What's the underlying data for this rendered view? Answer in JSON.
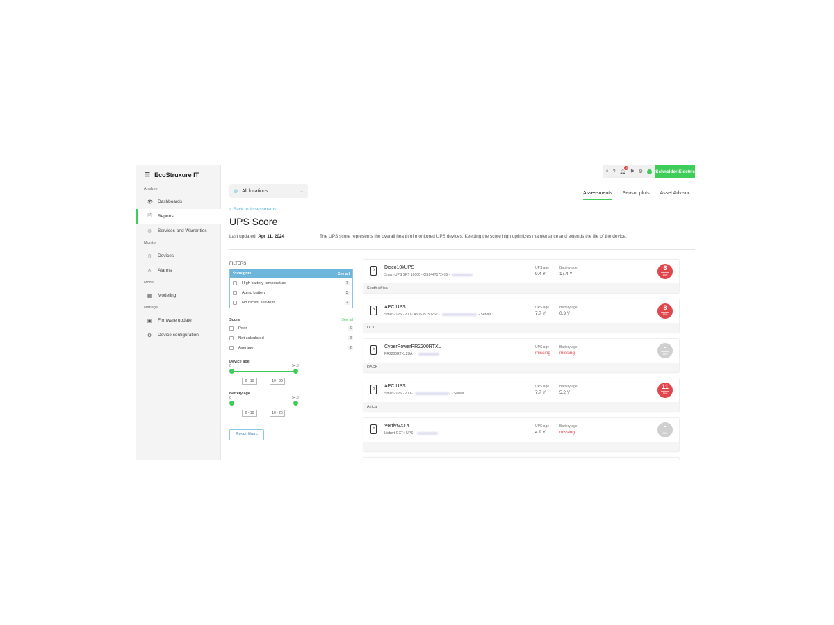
{
  "brand": "EcoStruxure IT",
  "sidebar": {
    "sections": [
      {
        "label": "Analyze",
        "items": [
          {
            "label": "Dashboards",
            "icon": "eye-icon"
          },
          {
            "label": "Reports",
            "icon": "report-icon",
            "active": true
          },
          {
            "label": "Services and Warranties",
            "icon": "services-icon"
          }
        ]
      },
      {
        "label": "Monitor",
        "items": [
          {
            "label": "Devices",
            "icon": "device-icon"
          },
          {
            "label": "Alarms",
            "icon": "alarm-icon"
          }
        ]
      },
      {
        "label": "Model",
        "items": [
          {
            "label": "Modeling",
            "icon": "modeling-icon"
          }
        ]
      },
      {
        "label": "Manage",
        "items": [
          {
            "label": "Firmware update",
            "icon": "firmware-icon"
          },
          {
            "label": "Device configuration",
            "icon": "config-icon"
          }
        ]
      }
    ]
  },
  "header": {
    "notification_count": "3",
    "logo": "Schneider Electric",
    "location": "All locations",
    "tabs": [
      "Assessments",
      "Sensor plots",
      "Asset Advisor"
    ]
  },
  "page": {
    "back": "Back to Assessments",
    "title": "UPS Score",
    "updated_label": "Last updated:",
    "updated": "Apr 11, 2024",
    "description": "The UPS score represents the overall health of monitored UPS devices. Keeping the score high optimizes maintenance and extends the life of the device."
  },
  "filters": {
    "title": "FILTERS",
    "insights": {
      "label": "Insights",
      "see_all": "See all",
      "items": [
        {
          "label": "High battery temperature",
          "count": "7"
        },
        {
          "label": "Aging battery",
          "count": "3"
        },
        {
          "label": "No recent self-test",
          "count": "2"
        }
      ]
    },
    "score": {
      "label": "Score",
      "see_all": "See all",
      "items": [
        {
          "label": "Poor",
          "count": "6"
        },
        {
          "label": "Not calculated",
          "count": "2"
        },
        {
          "label": "Average",
          "count": "2"
        }
      ]
    },
    "device_age": {
      "label": "Device age",
      "min": "0",
      "max": "54.3",
      "chips": [
        "0 - 10",
        "10 - 20"
      ]
    },
    "battery_age": {
      "label": "Battery age",
      "min": "0",
      "max": "54.3",
      "chips": [
        "0 - 10",
        "10 - 20"
      ]
    },
    "reset": "Reset filters"
  },
  "labels": {
    "ups_age": "UPS age",
    "battery_age": "Battery age",
    "out_of": "100"
  },
  "devices": [
    {
      "name": "Disco10kUPS",
      "sub": "Smart-UPS SRT 10000 - QS1447172495 -",
      "suffix": "",
      "ups_age": "9.4 Y",
      "battery_age": "17.4 Y",
      "score": "6",
      "location": "South Africa",
      "color": "#e0474c"
    },
    {
      "name": "APC UPS",
      "sub": "Smart-UPS 2200 - AS1635150260 -",
      "suffix": "- Server 1",
      "ups_age": "7.7 Y",
      "battery_age": "0.3 Y",
      "score": "8",
      "location": "DC1",
      "color": "#e0474c"
    },
    {
      "name": "CyberPowerPR2200RTXL",
      "sub": "PR2200RTXL2UA - -",
      "suffix": "",
      "ups_age": "missing",
      "battery_age": "missing",
      "score": "-",
      "location": "RACK",
      "color": "#cfcfcf"
    },
    {
      "name": "APC UPS",
      "sub": "Smart-UPS 2200 -",
      "suffix": "- Server 1",
      "ups_age": "7.7 Y",
      "battery_age": "5.2 Y",
      "score": "11",
      "location": "Africa",
      "color": "#e0474c"
    },
    {
      "name": "VertivGXT4",
      "sub": "Liebert GXT4 UPS -",
      "suffix": "",
      "ups_age": "4.9 Y",
      "battery_age": "missing",
      "score": "-",
      "location": "",
      "color": "#cfcfcf"
    }
  ]
}
